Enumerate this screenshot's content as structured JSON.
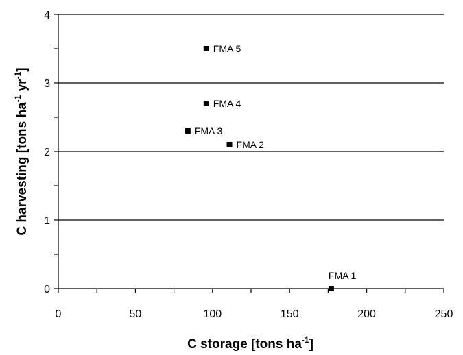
{
  "chart_data": {
    "type": "scatter",
    "title": "",
    "xlabel": {
      "main": "C storage [tons ha",
      "sup": "-1",
      "end": "]"
    },
    "ylabel": {
      "main": "C harvesting [tons ha",
      "sup1": "-1",
      "mid": " yr",
      "sup2": "-1",
      "end": "]"
    },
    "xlim": [
      0,
      250
    ],
    "ylim": [
      0,
      4
    ],
    "xticks": [
      0,
      50,
      100,
      150,
      200,
      250
    ],
    "xtick_labels": [
      "0",
      "50",
      "100",
      "150",
      "200",
      "250"
    ],
    "yticks": [
      0,
      1,
      2,
      3,
      4
    ],
    "ytick_labels": [
      "0",
      "1",
      "2",
      "3",
      "4"
    ],
    "gridlines": "horizontal",
    "marker_color": "#000000",
    "points": [
      {
        "label": "FMA 1",
        "x": 177,
        "y": 0.0,
        "label_pos": "above"
      },
      {
        "label": "FMA 2",
        "x": 111,
        "y": 2.1,
        "label_pos": "right"
      },
      {
        "label": "FMA 3",
        "x": 84,
        "y": 2.3,
        "label_pos": "right"
      },
      {
        "label": "FMA 4",
        "x": 96,
        "y": 2.7,
        "label_pos": "right"
      },
      {
        "label": "FMA 5",
        "x": 96,
        "y": 3.5,
        "label_pos": "right"
      }
    ]
  }
}
